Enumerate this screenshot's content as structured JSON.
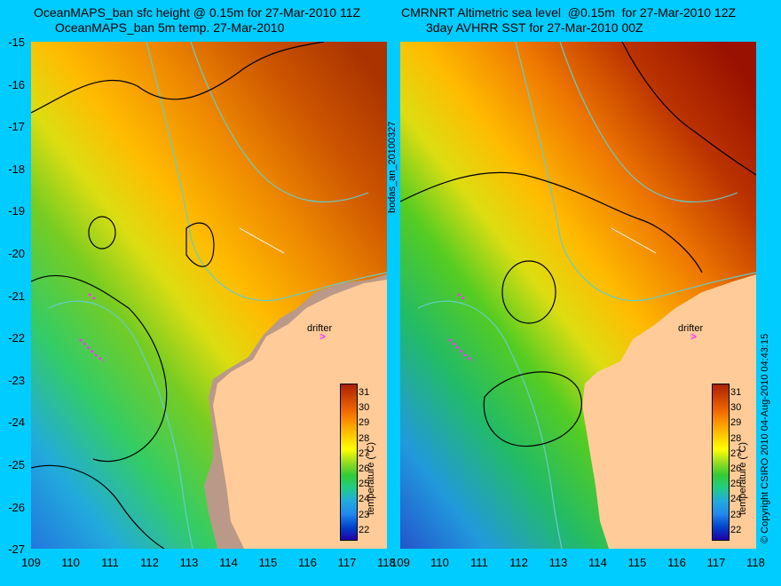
{
  "titles": {
    "left_line1": "OceanMAPS_ban sfc height @ 0.15m for 27-Mar-2010 11Z",
    "left_line2": "OceanMAPS_ban 5m temp. 27-Mar-2010",
    "right_line1": "CMRNRT Altimetric sea level  @0.15m  for 27-Mar-2010 12Z",
    "right_line2": "3day AVHRR SST for 27-Mar-2010 00Z"
  },
  "axes": {
    "y_ticks": [
      "-15",
      "-16",
      "-17",
      "-18",
      "-19",
      "-20",
      "-21",
      "-22",
      "-23",
      "-24",
      "-25",
      "-26",
      "-27"
    ],
    "x_ticks_left": [
      "109",
      "110",
      "111",
      "112",
      "113",
      "114",
      "115",
      "116",
      "117",
      "118"
    ],
    "x_ticks_right": [
      "109",
      "110",
      "111",
      "112",
      "113",
      "114",
      "115",
      "116",
      "117",
      "118"
    ]
  },
  "colorbar": {
    "ticks": [
      "31",
      "30",
      "29",
      "28",
      "27",
      "26",
      "25",
      "24",
      "23",
      "22"
    ],
    "title": "temperature (°C)",
    "colors": [
      "#2200aa",
      "#0044cc",
      "#2288ee",
      "#22aadd",
      "#22cc88",
      "#33cc33",
      "#99dd22",
      "#ffff00",
      "#ffcc00",
      "#ff9900",
      "#ee6600",
      "#cc4400",
      "#aa2200"
    ]
  },
  "annotations": {
    "center_vertical": "bodas_an_20100327",
    "right_vertical": "© Copyright CSIRO 2010   04-Aug-2010 04:43:15",
    "drifter_label_left": "drifter",
    "drifter_label_right": "drifter",
    "drifter_mark": ">"
  },
  "colors": {
    "background": "#00ccff",
    "land": "#ffcc99",
    "land_model_mask": "#bb9988",
    "contour": "#000000",
    "isobath": "#66cccc",
    "drifter": "#ff33ff"
  }
}
